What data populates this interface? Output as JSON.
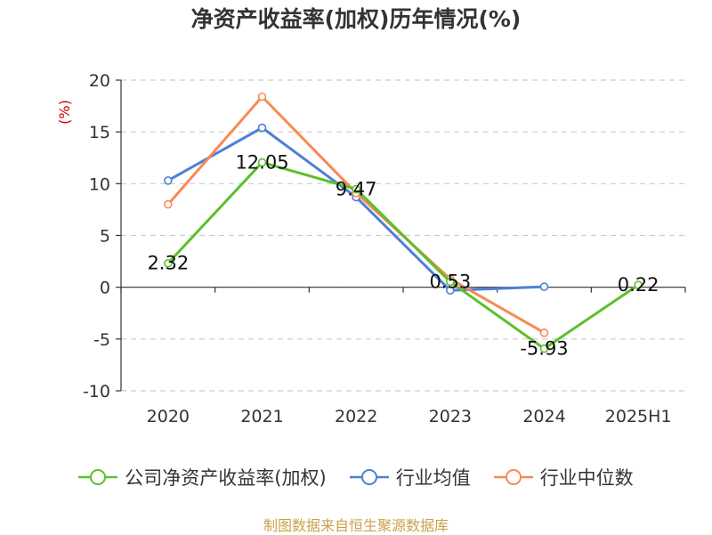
{
  "chart_data": {
    "type": "line",
    "title": "净资产收益率(加权)历年情况(%)",
    "ylabel": "(%)",
    "categories": [
      "2020",
      "2021",
      "2022",
      "2023",
      "2024",
      "2025H1"
    ],
    "ylim": [
      -10,
      20
    ],
    "yticks": [
      "20",
      "15",
      "10",
      "5",
      "0",
      "-5",
      "-10"
    ],
    "ytick_values": [
      20,
      15,
      10,
      5,
      0,
      -5,
      -10
    ],
    "grid": true,
    "legend_position": "bottom",
    "series": [
      {
        "name": "公司净资产收益率(加权)",
        "color": "#5cc02c",
        "values": [
          2.32,
          12.05,
          9.47,
          0.53,
          -5.93,
          0.22
        ],
        "labels": [
          "2.32",
          "12.05",
          "9.47",
          "0.53",
          "-5.93",
          "0.22"
        ]
      },
      {
        "name": "行业均值",
        "color": "#4e7fd8",
        "values": [
          10.3,
          15.4,
          8.7,
          -0.3,
          0.05,
          null
        ]
      },
      {
        "name": "行业中位数",
        "color": "#f78a56",
        "values": [
          8.0,
          18.4,
          9.1,
          0.8,
          -4.4,
          null
        ]
      }
    ]
  },
  "source": "制图数据来自恒生聚源数据库"
}
